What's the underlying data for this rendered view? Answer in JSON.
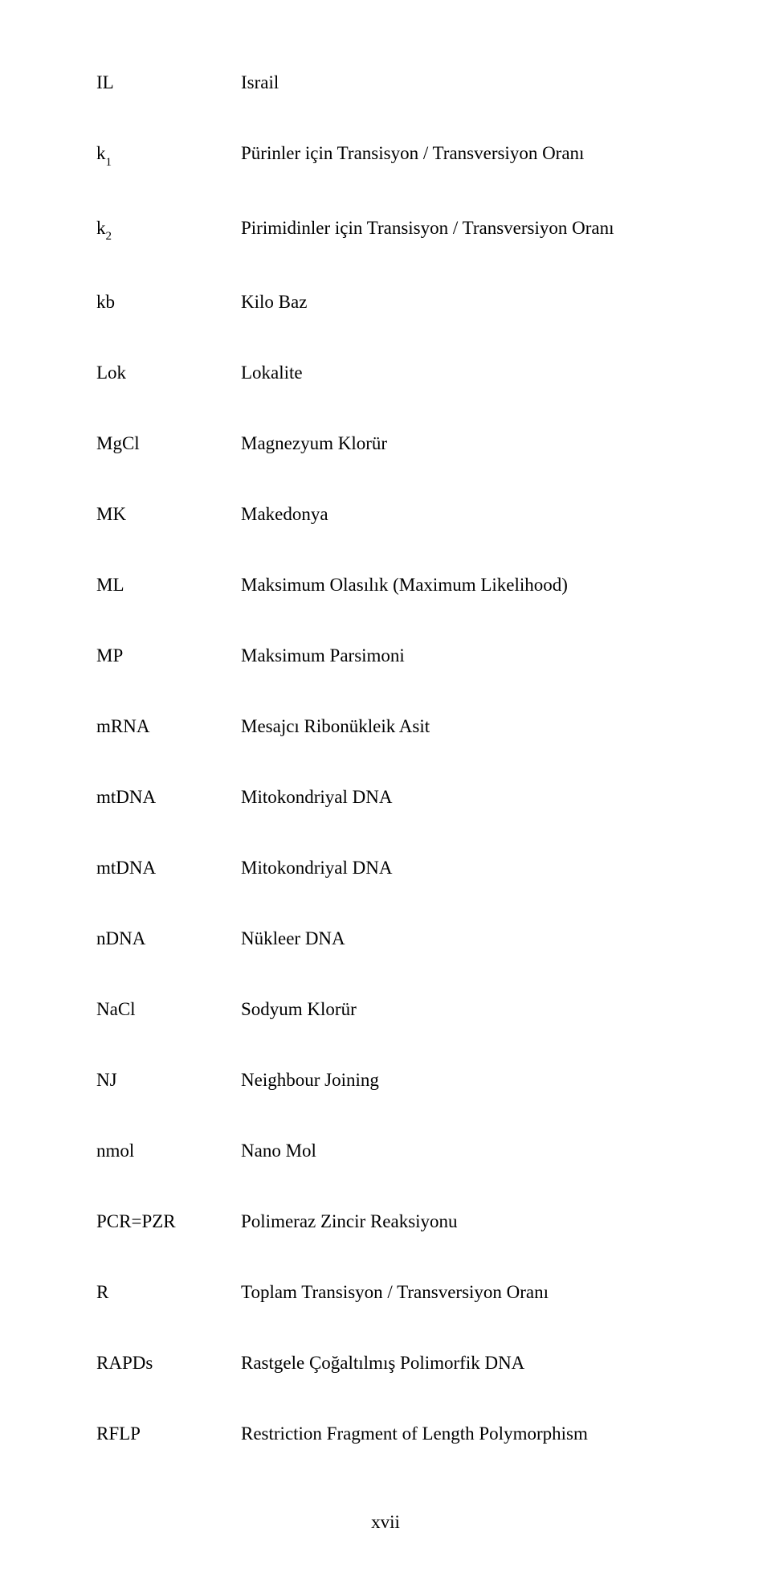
{
  "page_number": "xvii",
  "entries": [
    {
      "abbr_html": "IL",
      "def": "Israil"
    },
    {
      "abbr_html": "k<span class=\"sub\">1</span>",
      "def": "Pürinler için Transisyon / Transversiyon Oranı"
    },
    {
      "abbr_html": "k<span class=\"sub\">2</span>",
      "def": "Pirimidinler için Transisyon / Transversiyon Oranı"
    },
    {
      "abbr_html": "kb",
      "def": "Kilo Baz"
    },
    {
      "abbr_html": "Lok",
      "def": "Lokalite"
    },
    {
      "abbr_html": "MgCl",
      "def": "Magnezyum Klorür"
    },
    {
      "abbr_html": "MK",
      "def": "Makedonya"
    },
    {
      "abbr_html": "ML",
      "def": "Maksimum Olasılık (Maximum Likelihood)"
    },
    {
      "abbr_html": "MP",
      "def": "Maksimum Parsimoni"
    },
    {
      "abbr_html": "mRNA",
      "def": "Mesajcı Ribonükleik Asit"
    },
    {
      "abbr_html": "mtDNA",
      "def": "Mitokondriyal DNA"
    },
    {
      "abbr_html": "mtDNA",
      "def": "Mitokondriyal DNA"
    },
    {
      "abbr_html": "nDNA",
      "def": "Nükleer DNA"
    },
    {
      "abbr_html": "NaCl",
      "def": "Sodyum Klorür"
    },
    {
      "abbr_html": "NJ",
      "def": "Neighbour Joining"
    },
    {
      "abbr_html": "nmol",
      "def": "Nano Mol"
    },
    {
      "abbr_html": "PCR=PZR",
      "def": "Polimeraz Zincir Reaksiyonu"
    },
    {
      "abbr_html": "R",
      "def": "Toplam Transisyon / Transversiyon Oranı"
    },
    {
      "abbr_html": "RAPDs",
      "def": "Rastgele Çoğaltılmış Polimorfik DNA"
    },
    {
      "abbr_html": "RFLP",
      "def": "Restriction Fragment of Length Polymorphism"
    }
  ]
}
